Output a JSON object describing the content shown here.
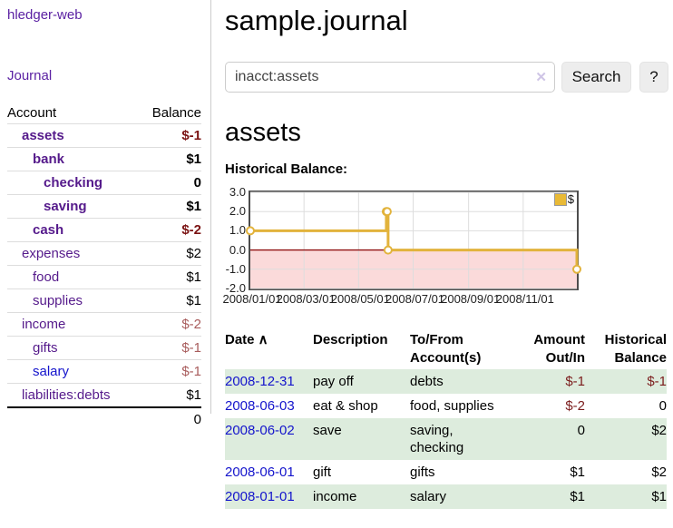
{
  "app": {
    "title": "hledger-web",
    "nav_journal": "Journal"
  },
  "sidebar": {
    "columns": {
      "account": "Account",
      "balance": "Balance"
    },
    "accounts": [
      {
        "name": "assets",
        "indent": 1,
        "balance": "$-1",
        "bold": true
      },
      {
        "name": "bank",
        "indent": 2,
        "balance": "$1",
        "bold": true
      },
      {
        "name": "checking",
        "indent": 3,
        "balance": "0",
        "bold": true
      },
      {
        "name": "saving",
        "indent": 3,
        "balance": "$1",
        "bold": true
      },
      {
        "name": "cash",
        "indent": 2,
        "balance": "$-2",
        "bold": true
      },
      {
        "name": "expenses",
        "indent": 1,
        "balance": "$2",
        "bold": false
      },
      {
        "name": "food",
        "indent": 2,
        "balance": "$1",
        "bold": false
      },
      {
        "name": "supplies",
        "indent": 2,
        "balance": "$1",
        "bold": false
      },
      {
        "name": "income",
        "indent": 1,
        "balance": "$-2",
        "bold": false
      },
      {
        "name": "gifts",
        "indent": 2,
        "balance": "$-1",
        "bold": false
      },
      {
        "name": "salary",
        "indent": 2,
        "balance": "$-1",
        "bold": false,
        "unvisited": true
      },
      {
        "name": "liabilities:debts",
        "indent": 1,
        "balance": "$1",
        "bold": false
      }
    ],
    "total": "0"
  },
  "header": {
    "title": "sample.journal"
  },
  "search": {
    "value": "inacct:assets",
    "clear_icon": "✕",
    "button_label": "Search",
    "help_label": "?"
  },
  "account_page": {
    "heading": "assets",
    "chart_title": "Historical Balance:"
  },
  "chart_data": {
    "type": "line",
    "title": "Historical Balance",
    "step": true,
    "series": [
      {
        "name": "$",
        "points": [
          {
            "date": "2008-01-01",
            "value": 1
          },
          {
            "date": "2008-06-01",
            "value": 2
          },
          {
            "date": "2008-06-02",
            "value": 2
          },
          {
            "date": "2008-06-03",
            "value": 0
          },
          {
            "date": "2008-12-31",
            "value": -1
          }
        ]
      }
    ],
    "x_range": [
      "2008-01-01",
      "2008-12-31"
    ],
    "ylim": [
      -2,
      3
    ],
    "yticks": [
      "3.0",
      "2.0",
      "1.0",
      "0.0",
      "-1.0",
      "-2.0"
    ],
    "xticks": [
      "2008/01/01",
      "2008/03/01",
      "2008/05/01",
      "2008/07/01",
      "2008/09/01",
      "2008/11/01"
    ],
    "grid": true,
    "legend_position": "top-right",
    "colors": {
      "line": "#e2b33c",
      "marker_fill": "#ffffff",
      "negative_fill": "#fbdada",
      "zero_line": "#8f1010",
      "grid": "#ddd",
      "legend_swatch": "#e9ba36"
    }
  },
  "register": {
    "sort_icon": "∧",
    "columns": [
      {
        "label": "Date",
        "sorted": true,
        "align": "left"
      },
      {
        "label": "Description",
        "sorted": false,
        "align": "left"
      },
      {
        "label": "To/From Account(s)",
        "sorted": false,
        "align": "left"
      },
      {
        "label": "Amount Out/In",
        "sorted": false,
        "align": "right"
      },
      {
        "label": "Historical Balance",
        "sorted": false,
        "align": "right"
      }
    ],
    "rows": [
      {
        "date": "2008-12-31",
        "description": "pay off",
        "accounts": "debts",
        "amount": "$-1",
        "balance": "$-1"
      },
      {
        "date": "2008-06-03",
        "description": "eat & shop",
        "accounts": "food, supplies",
        "amount": "$-2",
        "balance": "0"
      },
      {
        "date": "2008-06-02",
        "description": "save",
        "accounts": "saving, checking",
        "amount": "0",
        "balance": "$2"
      },
      {
        "date": "2008-06-01",
        "description": "gift",
        "accounts": "gifts",
        "amount": "$1",
        "balance": "$2"
      },
      {
        "date": "2008-01-01",
        "description": "income",
        "accounts": "salary",
        "amount": "$1",
        "balance": "$1"
      }
    ]
  }
}
